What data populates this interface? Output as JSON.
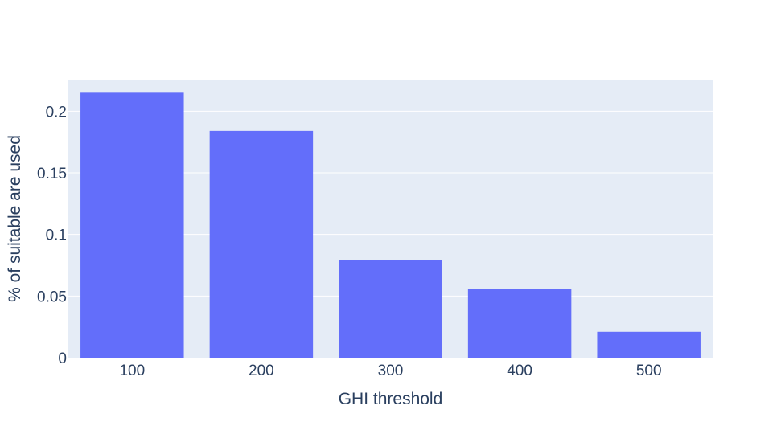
{
  "chart_data": {
    "type": "bar",
    "categories": [
      "100",
      "200",
      "300",
      "400",
      "500"
    ],
    "values": [
      0.215,
      0.184,
      0.079,
      0.056,
      0.021
    ],
    "title": "",
    "xlabel": "GHI threshold",
    "ylabel": "% of suitable are used",
    "ylim": [
      0,
      0.225
    ],
    "yticks": [
      0,
      0.05,
      0.1,
      0.15,
      0.2
    ],
    "ytick_labels": [
      "0",
      "0.05",
      "0.1",
      "0.15",
      "0.2"
    ],
    "grid": true,
    "colors": {
      "bar": "#636efa",
      "plot_background": "#e5ecf6",
      "grid": "#ffffff",
      "text": "#2a3f5f"
    }
  }
}
